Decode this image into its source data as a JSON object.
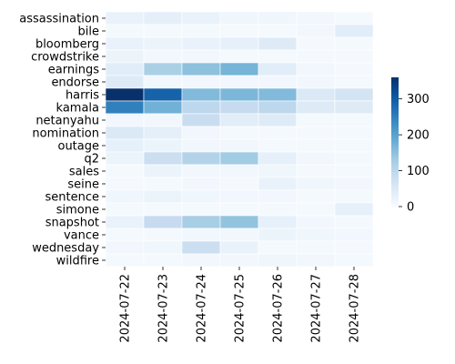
{
  "chart_data": {
    "type": "heatmap",
    "x": [
      "2024-07-22",
      "2024-07-23",
      "2024-07-24",
      "2024-07-25",
      "2024-07-26",
      "2024-07-27",
      "2024-07-28"
    ],
    "y": [
      "assassination",
      "bile",
      "bloomberg",
      "crowdstrike",
      "earnings",
      "endorse",
      "harris",
      "kamala",
      "netanyahu",
      "nomination",
      "outage",
      "q2",
      "sales",
      "seine",
      "sentence",
      "simone",
      "snapshot",
      "vance",
      "wednesday",
      "wildfire"
    ],
    "values": [
      [
        25,
        35,
        25,
        15,
        15,
        10,
        5
      ],
      [
        5,
        5,
        5,
        5,
        5,
        10,
        40
      ],
      [
        25,
        20,
        25,
        30,
        45,
        5,
        5
      ],
      [
        20,
        10,
        10,
        5,
        5,
        5,
        5
      ],
      [
        40,
        120,
        150,
        170,
        40,
        10,
        5
      ],
      [
        45,
        10,
        10,
        10,
        10,
        10,
        5
      ],
      [
        360,
        290,
        160,
        165,
        160,
        50,
        65
      ],
      [
        250,
        175,
        100,
        90,
        100,
        45,
        45
      ],
      [
        10,
        10,
        85,
        40,
        45,
        5,
        5
      ],
      [
        50,
        35,
        10,
        5,
        5,
        5,
        5
      ],
      [
        30,
        20,
        10,
        10,
        5,
        5,
        5
      ],
      [
        20,
        80,
        110,
        130,
        30,
        10,
        5
      ],
      [
        5,
        20,
        10,
        10,
        15,
        5,
        5
      ],
      [
        5,
        5,
        10,
        5,
        25,
        15,
        10
      ],
      [
        15,
        20,
        15,
        10,
        10,
        5,
        5
      ],
      [
        5,
        5,
        5,
        5,
        5,
        5,
        30
      ],
      [
        25,
        90,
        125,
        145,
        30,
        10,
        5
      ],
      [
        5,
        5,
        10,
        10,
        20,
        15,
        10
      ],
      [
        10,
        15,
        80,
        25,
        5,
        5,
        5
      ],
      [
        5,
        5,
        10,
        10,
        15,
        10,
        5
      ]
    ],
    "colorbar": {
      "min": 0,
      "max": 360,
      "ticks": [
        0,
        100,
        200,
        300
      ],
      "colormap": "Blues"
    },
    "title": "",
    "xlabel": "",
    "ylabel": "",
    "grid": false
  }
}
